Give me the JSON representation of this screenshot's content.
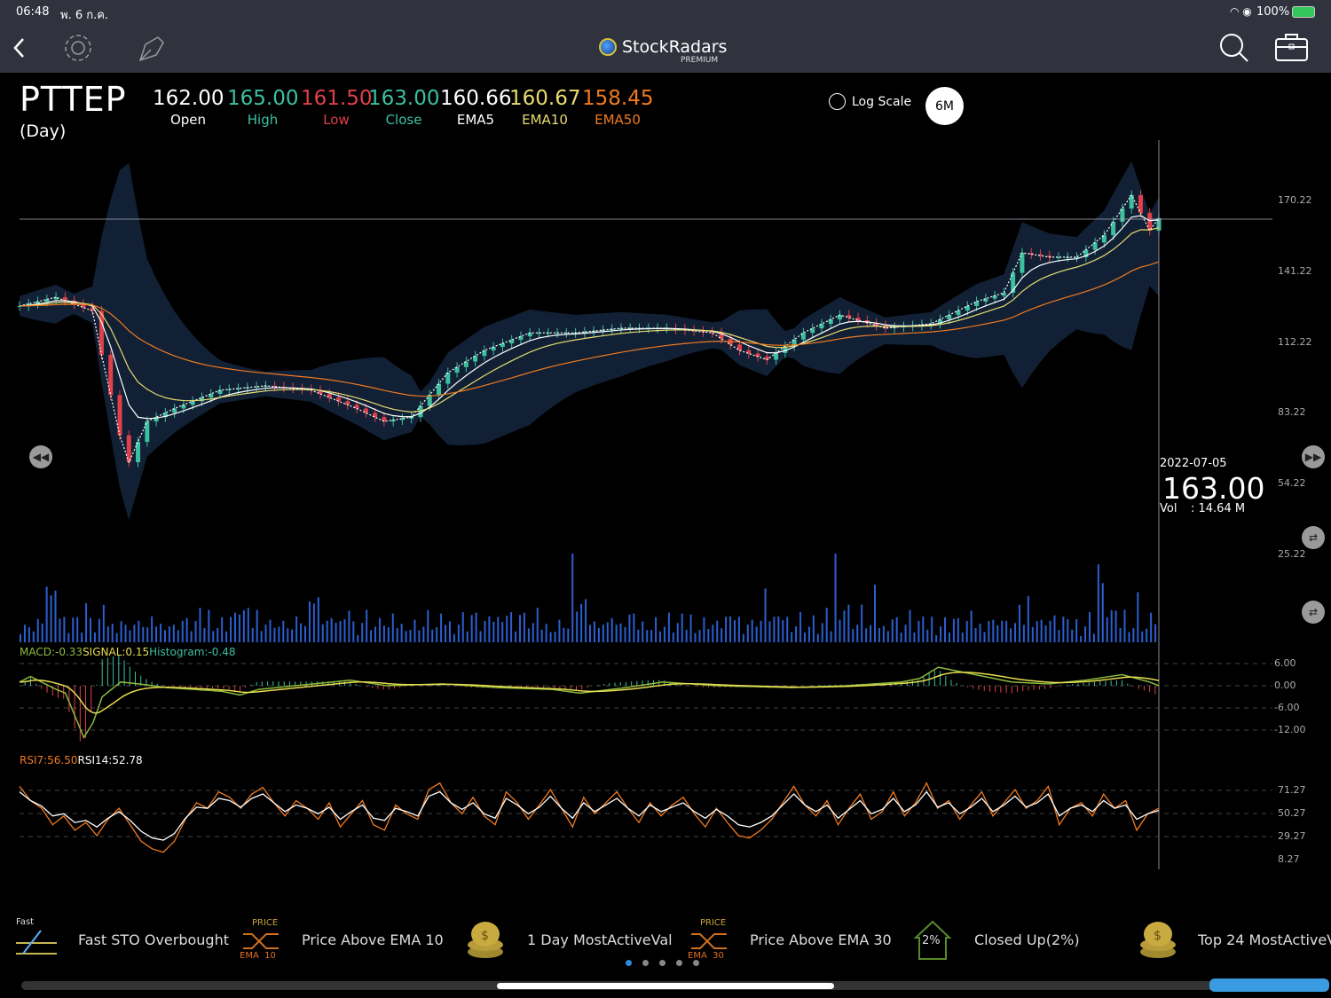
{
  "status_bar": {
    "time": "06:48",
    "date": "พ. 6 ก.ค.",
    "battery": "100%"
  },
  "app": {
    "name": "StockRadars",
    "tier": "PREMIUM"
  },
  "quote": {
    "symbol": "PTTEP",
    "period": "(Day)",
    "fields": [
      {
        "label": "Open",
        "value": "162.00",
        "color": "#ffffff"
      },
      {
        "label": "High",
        "value": "165.00",
        "color": "#3cc0a0"
      },
      {
        "label": "Low",
        "value": "161.50",
        "color": "#e0404a"
      },
      {
        "label": "Close",
        "value": "163.00",
        "color": "#3cc0a0"
      },
      {
        "label": "EMA5",
        "value": "160.66",
        "color": "#ffffff"
      },
      {
        "label": "EMA10",
        "value": "160.67",
        "color": "#e8dc70"
      },
      {
        "label": "EMA50",
        "value": "158.45",
        "color": "#f07a20"
      }
    ]
  },
  "controls": {
    "log_scale": "Log Scale",
    "range": "6M"
  },
  "crosshair": {
    "date": "2022-07-05",
    "price": "163.00",
    "vol_label": "Vol",
    "vol_value": ": 14.64 M"
  },
  "indicators": {
    "macd": "MACD:-0.33",
    "signal": "SIGNAL:0.15",
    "histogram": "Histogram:-0.48",
    "rsi7": "RSI7:56.50",
    "rsi14": "RSI14:52.78"
  },
  "signals": [
    {
      "label": "Fast STO Overbought",
      "icon": "fast-sto-icon"
    },
    {
      "label": "Price Above EMA 10",
      "icon": "price-cross-ema-icon",
      "top": "PRICE",
      "bottom": "EMA  10"
    },
    {
      "label": "1 Day MostActiveVal",
      "icon": "coins-icon"
    },
    {
      "label": "Price Above EMA 30",
      "icon": "price-cross-ema-icon",
      "top": "PRICE",
      "bottom": "EMA  30"
    },
    {
      "label": "Closed Up(2%)",
      "icon": "arrow-up-2pct-icon",
      "badge": "2%"
    },
    {
      "label": "Top 24 MostActiveV",
      "icon": "coins-icon"
    }
  ],
  "fast_label": "Fast",
  "chart_data": {
    "type": "line",
    "price_axis": {
      "ticks": [
        170.22,
        141.22,
        112.22,
        83.22,
        54.22,
        25.22
      ]
    },
    "price_close": [
      [
        0,
        127
      ],
      [
        4,
        130.6
      ],
      [
        8,
        125
      ],
      [
        9,
        107
      ],
      [
        11,
        74
      ],
      [
        12,
        63
      ],
      [
        14,
        79.7
      ],
      [
        17,
        85
      ],
      [
        22,
        92.5
      ],
      [
        27,
        94.3
      ],
      [
        32,
        92.5
      ],
      [
        37,
        85
      ],
      [
        40,
        79.7
      ],
      [
        43,
        81.5
      ],
      [
        47,
        99.7
      ],
      [
        51,
        108.8
      ],
      [
        56,
        116
      ],
      [
        61,
        116
      ],
      [
        66,
        117.9
      ],
      [
        71,
        117.9
      ],
      [
        76,
        116
      ],
      [
        79,
        108.8
      ],
      [
        82,
        105
      ],
      [
        86,
        116
      ],
      [
        90,
        123.3
      ],
      [
        95,
        117.9
      ],
      [
        100,
        119.7
      ],
      [
        105,
        128.8
      ],
      [
        108,
        132.4
      ],
      [
        110,
        148.8
      ],
      [
        113,
        147
      ],
      [
        116,
        147
      ],
      [
        119,
        156
      ],
      [
        122,
        172.4
      ],
      [
        124,
        157.9
      ],
      [
        125,
        163
      ]
    ],
    "volume_m": [
      8,
      10,
      6,
      9,
      12,
      7,
      40,
      22,
      18,
      15,
      11,
      9,
      14,
      10,
      8,
      20,
      9,
      7,
      11,
      13,
      10,
      8,
      9,
      12,
      7,
      10,
      9,
      8,
      11,
      7,
      9,
      10,
      8,
      12,
      9,
      7,
      10,
      11,
      9,
      8,
      10,
      12,
      9,
      14,
      11,
      8,
      10,
      9,
      13,
      11,
      20,
      15,
      12,
      9,
      14,
      11,
      10,
      9,
      12,
      8
    ],
    "macd_axis": {
      "ticks": [
        6.0,
        0.0,
        -6.0,
        -12.0
      ]
    },
    "macd": [
      [
        0,
        1
      ],
      [
        6,
        2.5
      ],
      [
        12,
        1
      ],
      [
        20,
        -1
      ],
      [
        25,
        -2
      ],
      [
        30,
        -8
      ],
      [
        35,
        -14
      ],
      [
        40,
        -10
      ],
      [
        45,
        -3
      ],
      [
        55,
        1
      ],
      [
        65,
        0.5
      ],
      [
        80,
        -0.5
      ],
      [
        95,
        -1
      ],
      [
        110,
        -1.5
      ],
      [
        120,
        -2.5
      ],
      [
        130,
        -1
      ],
      [
        150,
        0
      ],
      [
        180,
        1.5
      ],
      [
        200,
        0
      ],
      [
        230,
        0.5
      ],
      [
        260,
        -0.5
      ],
      [
        290,
        -1
      ],
      [
        305,
        -2
      ],
      [
        330,
        -0.5
      ],
      [
        350,
        1
      ],
      [
        380,
        0
      ],
      [
        420,
        -0.5
      ],
      [
        450,
        0
      ],
      [
        480,
        1
      ],
      [
        490,
        2
      ],
      [
        500,
        5
      ],
      [
        510,
        4
      ],
      [
        540,
        1
      ],
      [
        560,
        0.5
      ],
      [
        580,
        1.5
      ],
      [
        600,
        3
      ],
      [
        615,
        1
      ],
      [
        620,
        0
      ]
    ],
    "rsi_axis": {
      "ticks": [
        71.27,
        50.27,
        29.27,
        8.27
      ]
    },
    "rsi7": [
      75,
      62,
      55,
      40,
      48,
      35,
      42,
      30,
      45,
      55,
      40,
      25,
      18,
      15,
      25,
      45,
      60,
      55,
      70,
      65,
      55,
      68,
      74,
      60,
      48,
      62,
      55,
      45,
      60,
      38,
      50,
      62,
      40,
      35,
      58,
      50,
      45,
      72,
      78,
      60,
      50,
      65,
      48,
      40,
      70,
      60,
      45,
      58,
      72,
      55,
      38,
      65,
      50,
      60,
      70,
      55,
      42,
      60,
      48,
      58,
      65,
      50,
      38,
      55,
      42,
      30,
      28,
      35,
      45,
      60,
      75,
      58,
      48,
      62,
      40,
      55,
      68,
      45,
      52,
      70,
      48,
      60,
      78,
      55,
      62,
      45,
      58,
      70,
      48,
      60,
      72,
      55,
      62,
      75,
      40,
      55,
      60,
      48,
      68,
      55,
      62,
      35,
      50,
      55
    ],
    "rsi14": [
      70,
      62,
      57,
      48,
      50,
      42,
      44,
      38,
      46,
      52,
      44,
      34,
      28,
      26,
      32,
      46,
      56,
      55,
      64,
      62,
      56,
      64,
      68,
      60,
      52,
      58,
      55,
      50,
      56,
      45,
      52,
      58,
      46,
      44,
      55,
      52,
      48,
      66,
      70,
      60,
      54,
      60,
      50,
      46,
      64,
      58,
      50,
      56,
      66,
      55,
      46,
      60,
      52,
      58,
      64,
      55,
      48,
      58,
      52,
      56,
      60,
      52,
      46,
      54,
      48,
      40,
      38,
      42,
      48,
      58,
      68,
      58,
      52,
      58,
      46,
      54,
      62,
      50,
      54,
      64,
      52,
      58,
      70,
      56,
      60,
      50,
      56,
      64,
      52,
      58,
      66,
      56,
      60,
      68,
      48,
      55,
      58,
      52,
      62,
      55,
      58,
      45,
      50,
      53
    ]
  }
}
